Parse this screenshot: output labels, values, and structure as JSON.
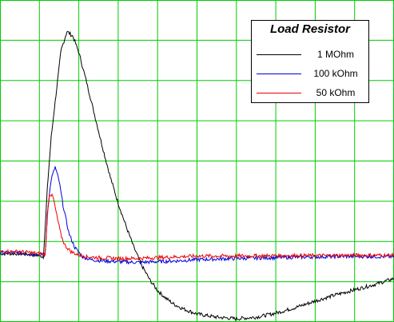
{
  "chart_data": {
    "type": "line",
    "title": "",
    "xlabel": "",
    "ylabel": "",
    "grid": true,
    "grid_color": "#00cc00",
    "background": "#ffffff",
    "xlim": [
      0,
      10
    ],
    "ylim": [
      0,
      8
    ],
    "legend": {
      "title": "Load Resistor",
      "placement": "top-right"
    },
    "series": [
      {
        "name": "1 MOhm",
        "color": "#000000",
        "x": [
          0,
          0.5,
          1.0,
          1.1,
          1.15,
          1.2,
          1.3,
          1.45,
          1.55,
          1.7,
          1.85,
          2.0,
          2.2,
          2.4,
          2.6,
          2.8,
          3.0,
          3.2,
          3.4,
          3.6,
          3.8,
          4.0,
          4.2,
          4.4,
          4.6,
          4.8,
          5.0,
          5.5,
          6.0,
          6.5,
          7.0,
          7.5,
          8.0,
          8.5,
          9.0,
          9.5,
          10.0
        ],
        "y": [
          1.7,
          1.7,
          1.65,
          1.62,
          2.4,
          3.3,
          4.6,
          5.9,
          6.75,
          7.22,
          7.1,
          6.7,
          5.95,
          5.15,
          4.35,
          3.6,
          2.95,
          2.38,
          1.85,
          1.4,
          1.05,
          0.78,
          0.6,
          0.45,
          0.35,
          0.27,
          0.2,
          0.12,
          0.08,
          0.12,
          0.22,
          0.36,
          0.52,
          0.67,
          0.8,
          0.93,
          1.08
        ]
      },
      {
        "name": "100 kOhm",
        "color": "#0000dd",
        "x": [
          0,
          0.5,
          1.0,
          1.15,
          1.2,
          1.3,
          1.4,
          1.5,
          1.6,
          1.75,
          1.9,
          2.1,
          2.3,
          2.6,
          3.0,
          3.5,
          4.0,
          4.5,
          5.0,
          6.0,
          7.0,
          8.0,
          9.0,
          10.0
        ],
        "y": [
          1.72,
          1.72,
          1.68,
          1.66,
          2.7,
          3.55,
          3.85,
          3.5,
          2.9,
          2.2,
          1.85,
          1.62,
          1.55,
          1.52,
          1.5,
          1.48,
          1.5,
          1.52,
          1.55,
          1.58,
          1.6,
          1.62,
          1.63,
          1.62
        ]
      },
      {
        "name": "50 kOhm",
        "color": "#ee0000",
        "x": [
          0,
          0.5,
          1.0,
          1.15,
          1.2,
          1.25,
          1.35,
          1.45,
          1.55,
          1.65,
          1.8,
          1.95,
          2.2,
          2.5,
          3.0,
          3.5,
          4.0,
          4.5,
          5.0,
          6.0,
          7.0,
          8.0,
          9.0,
          10.0
        ],
        "y": [
          1.75,
          1.75,
          1.7,
          1.68,
          2.6,
          3.2,
          3.1,
          2.6,
          2.15,
          1.9,
          1.75,
          1.68,
          1.62,
          1.6,
          1.58,
          1.58,
          1.6,
          1.62,
          1.64,
          1.64,
          1.65,
          1.65,
          1.66,
          1.66
        ]
      }
    ]
  }
}
